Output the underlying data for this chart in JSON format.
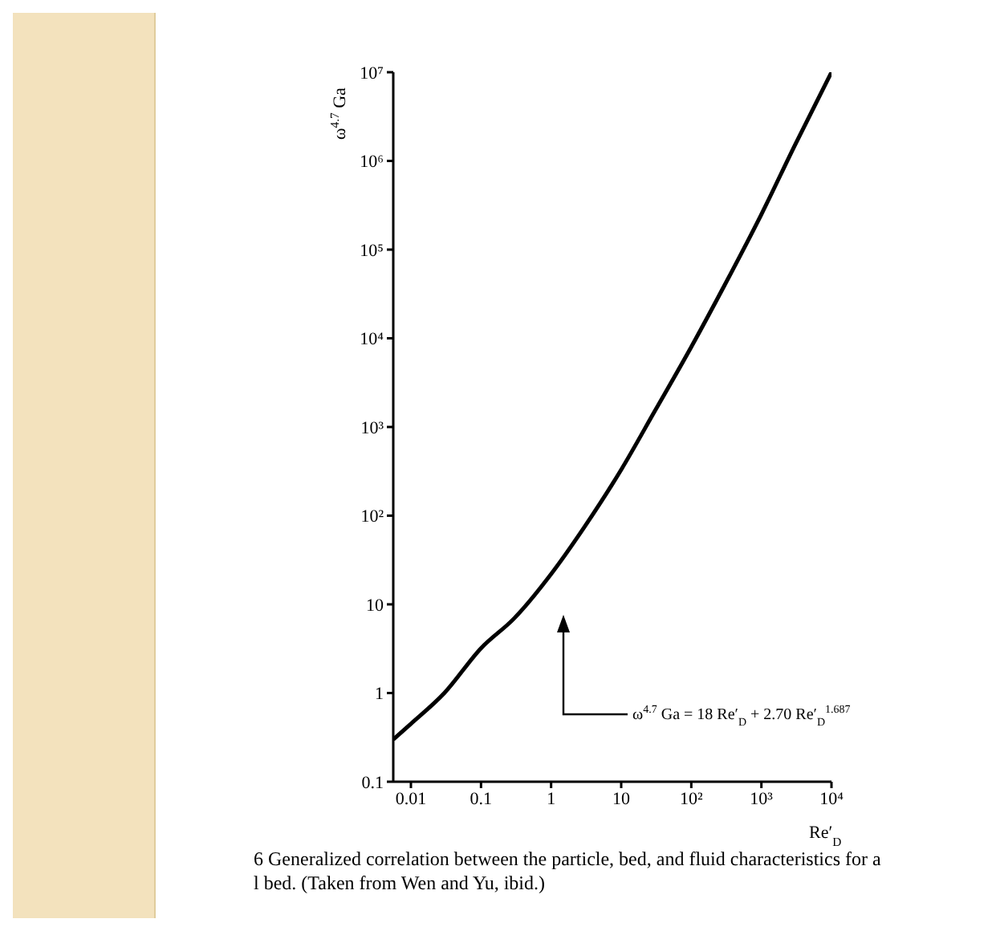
{
  "chart_data": {
    "type": "line",
    "xlabel": "Re′$_{D}$",
    "ylabel": "ω$^{4.7}$ Ga",
    "log": "xy",
    "grid": false,
    "legend": false,
    "marker": "none",
    "line_style": "solid",
    "x": [
      0.0056,
      0.01,
      0.03,
      0.1,
      0.3,
      1,
      3,
      10,
      30,
      100,
      300,
      1000,
      3000,
      10000
    ],
    "series": [
      {
        "color": "#000000",
        "values": [
          0.3,
          0.45,
          1,
          3.2,
          7,
          22,
          75,
          330,
          1500,
          8000,
          40000,
          250000,
          1500000,
          10000000
        ]
      }
    ],
    "xlim": [
      0.0056,
      10000
    ],
    "xticks": [
      0.01,
      0.1,
      1,
      10,
      {
        "value": 100,
        "label": "10²"
      },
      {
        "value": 1000,
        "label": "10³"
      },
      {
        "value": 10000,
        "label": "10⁴"
      }
    ],
    "ylim": [
      0.1,
      10000000
    ],
    "yticks": [
      0.1,
      1,
      10,
      {
        "value": 100,
        "label": "10²"
      },
      {
        "value": 1000,
        "label": "10³"
      },
      {
        "value": 10000,
        "label": "10⁴"
      },
      {
        "value": 100000,
        "label": "10⁵"
      },
      {
        "value": 1000000,
        "label": "10⁶"
      },
      {
        "value": 10000000,
        "label": "10⁷"
      }
    ],
    "annotations": [
      "ω$^{4.7}$ Ga = 18 Re′$_{D}$ + 2.70 Re′$_{D}$$^{1.687}$",
      "6  Generalized correlation between the particle, bed, and fluid characteristics for a",
      "l bed.  (Taken from Wen and Yu, ibid.)"
    ]
  }
}
